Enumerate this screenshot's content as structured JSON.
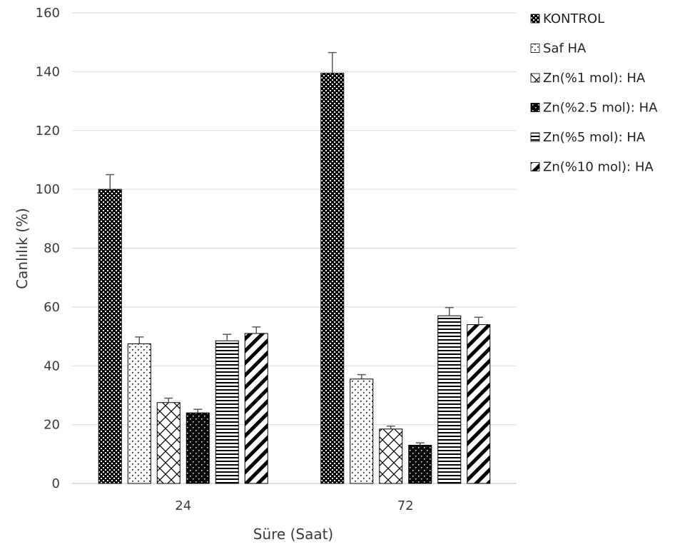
{
  "chart_data": {
    "type": "bar",
    "categories": [
      "24",
      "72"
    ],
    "series": [
      {
        "name": "KONTROL",
        "values": [
          100,
          139.5
        ],
        "errors": [
          5,
          7
        ],
        "pattern": "dense-check"
      },
      {
        "name": "Saf HA",
        "values": [
          47.5,
          35.5
        ],
        "errors": [
          2.3,
          1.5
        ],
        "pattern": "dots"
      },
      {
        "name": "Zn(%1 mol): HA",
        "values": [
          27.5,
          18.5
        ],
        "errors": [
          1.5,
          1.0
        ],
        "pattern": "diamond"
      },
      {
        "name": "Zn(%2.5 mol): HA",
        "values": [
          24,
          13
        ],
        "errors": [
          1.2,
          0.8
        ],
        "pattern": "solid-dots"
      },
      {
        "name": "Zn(%5 mol): HA",
        "values": [
          48.5,
          57
        ],
        "errors": [
          2.2,
          2.8
        ],
        "pattern": "hlines"
      },
      {
        "name": "Zn(%10 mol): HA",
        "values": [
          51,
          54
        ],
        "errors": [
          2.2,
          2.5
        ],
        "pattern": "diag"
      }
    ],
    "xlabel": "Süre (Saat)",
    "ylabel": "Canlılık (%)",
    "ylim": [
      0,
      160
    ],
    "yticks": [
      0,
      20,
      40,
      60,
      80,
      100,
      120,
      140,
      160
    ],
    "grid": true,
    "legend": "right"
  }
}
